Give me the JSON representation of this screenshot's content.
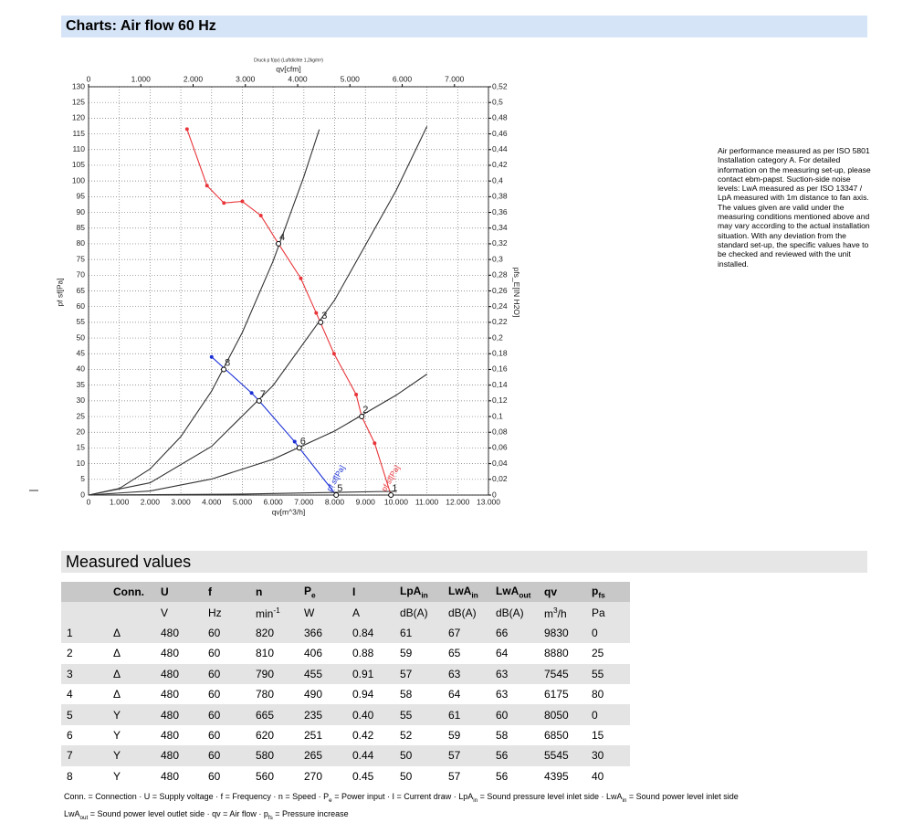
{
  "header": {
    "title": "Charts: Air flow 60 Hz"
  },
  "chart_data": {
    "type": "line",
    "title": "Druck p f(qv) (Luftdichte 1,2kg/m³)",
    "x_label": "qv[m^3/h]",
    "x2_label": "qv[cfm]",
    "y_label": "pf sf[Pa]",
    "y2_label": "pfs_E[IN H2O]",
    "xlim": [
      0,
      13000
    ],
    "xticks": [
      0,
      {
        "value": 1000,
        "label": "1.000"
      },
      {
        "value": 2000,
        "label": "2.000"
      },
      {
        "value": 3000,
        "label": "3.000"
      },
      {
        "value": 4000,
        "label": "4.000"
      },
      {
        "value": 5000,
        "label": "5.000"
      },
      {
        "value": 6000,
        "label": "6.000"
      },
      {
        "value": 7000,
        "label": "7.000"
      },
      {
        "value": 8000,
        "label": "8.000"
      },
      {
        "value": 9000,
        "label": "9.000"
      },
      {
        "value": 10000,
        "label": "10.000"
      },
      {
        "value": 11000,
        "label": "11.000"
      },
      {
        "value": 12000,
        "label": "12.000"
      },
      {
        "value": 13000,
        "label": "13.000"
      }
    ],
    "x2lim": [
      0,
      7650
    ],
    "x2ticks": [
      0,
      {
        "value": 1000,
        "label": "1.000"
      },
      {
        "value": 2000,
        "label": "2.000"
      },
      {
        "value": 3000,
        "label": "3.000"
      },
      {
        "value": 4000,
        "label": "4.000"
      },
      {
        "value": 5000,
        "label": "5.000"
      },
      {
        "value": 6000,
        "label": "6.000"
      },
      {
        "value": 7000,
        "label": "7.000"
      }
    ],
    "ylim": [
      0,
      130
    ],
    "yticks": [
      0,
      5,
      10,
      15,
      20,
      25,
      30,
      35,
      40,
      45,
      50,
      55,
      60,
      65,
      70,
      75,
      80,
      85,
      90,
      95,
      100,
      105,
      110,
      115,
      120,
      125,
      130
    ],
    "y2lim": [
      0,
      0.52
    ],
    "y2ticks": [
      0,
      {
        "value": 0.02,
        "label": "0,02"
      },
      {
        "value": 0.04,
        "label": "0,04"
      },
      {
        "value": 0.06,
        "label": "0,06"
      },
      {
        "value": 0.08,
        "label": "0,08"
      },
      {
        "value": 0.1,
        "label": "0,1"
      },
      {
        "value": 0.12,
        "label": "0,12"
      },
      {
        "value": 0.14,
        "label": "0,14"
      },
      {
        "value": 0.16,
        "label": "0,16"
      },
      {
        "value": 0.18,
        "label": "0,18"
      },
      {
        "value": 0.2,
        "label": "0,2"
      },
      {
        "value": 0.22,
        "label": "0,22"
      },
      {
        "value": 0.24,
        "label": "0,24"
      },
      {
        "value": 0.26,
        "label": "0,26"
      },
      {
        "value": 0.28,
        "label": "0,28"
      },
      {
        "value": 0.3,
        "label": "0,3"
      },
      {
        "value": 0.32,
        "label": "0,32"
      },
      {
        "value": 0.34,
        "label": "0,34"
      },
      {
        "value": 0.36,
        "label": "0,36"
      },
      {
        "value": 0.38,
        "label": "0,38"
      },
      {
        "value": 0.4,
        "label": "0,4"
      },
      {
        "value": 0.42,
        "label": "0,42"
      },
      {
        "value": 0.44,
        "label": "0,44"
      },
      {
        "value": 0.46,
        "label": "0,46"
      },
      {
        "value": 0.48,
        "label": "0,48"
      },
      {
        "value": 0.5,
        "label": "0,5"
      },
      {
        "value": 0.52,
        "label": "0,52"
      }
    ],
    "grid": true,
    "series": [
      {
        "name": "pf sf[Pa]",
        "color": "#e8353a",
        "x": [
          3200,
          3850,
          4400,
          5000,
          5600,
          6175,
          6900,
          7400,
          7980,
          8700,
          8880,
          9300,
          9830
        ],
        "values": [
          116.5,
          98.5,
          93,
          93.5,
          89,
          80,
          69,
          58,
          45,
          32,
          25,
          16.5,
          0
        ]
      },
      {
        "name": "pf sf[Pa]",
        "color": "#1a2fd6",
        "x": [
          4000,
          5300,
          5545,
          6700,
          6850,
          8050
        ],
        "values": [
          44,
          32.5,
          30,
          17,
          15,
          0
        ]
      },
      {
        "color": "#333333",
        "x": [
          0,
          1000,
          2000,
          3000,
          4000,
          5000,
          6000,
          7000,
          7500
        ],
        "values": [
          0,
          2.1,
          8.3,
          18.6,
          33.1,
          51.8,
          74.5,
          101.4,
          116.4
        ]
      },
      {
        "color": "#333333",
        "x": [
          0,
          2000,
          4000,
          6000,
          8000,
          10000,
          11000
        ],
        "values": [
          0,
          3.9,
          15.5,
          34.9,
          62.1,
          97,
          117.4
        ]
      },
      {
        "color": "#333333",
        "x": [
          0,
          2000,
          4000,
          6000,
          8000,
          10000,
          11000
        ],
        "values": [
          0,
          1.3,
          5.1,
          11.4,
          20.4,
          31.8,
          38.5
        ]
      },
      {
        "color": "#333333",
        "x": [
          0,
          5000,
          10000
        ],
        "values": [
          0,
          0.3,
          1.2
        ]
      }
    ],
    "points": {
      "labels": [
        "1",
        "2",
        "3",
        "4",
        "5",
        "6",
        "7",
        "8"
      ],
      "x": [
        9830,
        8880,
        7545,
        6175,
        8050,
        6850,
        5545,
        4395
      ],
      "values": [
        0,
        25,
        55,
        80,
        0,
        15,
        30,
        40
      ]
    }
  },
  "notes": [
    "Air performance measured as per ISO 5801",
    "Installation category A. For detailed",
    "information on the measuring set-up, please",
    "contact ebm-papst. Suction-side noise",
    "levels: LwA measured as per ISO 13347 /",
    "LpA measured with 1m distance to fan axis.",
    "The values given are valid under the",
    "measuring conditions mentioned above and",
    "may vary according to the actual installation",
    "situation. With any deviation from the",
    "standard set-up, the specific values have to",
    "be checked and reviewed with the unit",
    "installed."
  ],
  "section": {
    "title": "Measured values"
  },
  "table": {
    "header": [
      [],
      [
        {
          "text": "Conn."
        }
      ],
      [
        {
          "text": "U"
        }
      ],
      [
        {
          "text": "f"
        }
      ],
      [
        {
          "text": "n"
        }
      ],
      [
        {
          "text": "P"
        },
        {
          "text": "e",
          "pos": "sub"
        }
      ],
      [
        {
          "text": "I"
        }
      ],
      [
        {
          "text": "LpA"
        },
        {
          "text": "in",
          "pos": "sub"
        }
      ],
      [
        {
          "text": "LwA"
        },
        {
          "text": "in",
          "pos": "sub"
        }
      ],
      [
        {
          "text": "LwA"
        },
        {
          "text": "out",
          "pos": "sub"
        }
      ],
      [
        {
          "text": "qv"
        }
      ],
      [
        {
          "text": "p"
        },
        {
          "text": "fs",
          "pos": "sub"
        }
      ]
    ],
    "units": [
      [],
      [],
      [
        {
          "text": "V"
        }
      ],
      [
        {
          "text": "Hz"
        }
      ],
      [
        {
          "text": "min"
        },
        {
          "text": "-1",
          "pos": "sup"
        }
      ],
      [
        {
          "text": "W"
        }
      ],
      [
        {
          "text": "A"
        }
      ],
      [
        {
          "text": "dB(A)"
        }
      ],
      [
        {
          "text": "dB(A)"
        }
      ],
      [
        {
          "text": "dB(A)"
        }
      ],
      [
        {
          "text": "m"
        },
        {
          "text": "3",
          "pos": "sup"
        },
        {
          "text": "/h"
        }
      ],
      [
        {
          "text": "Pa"
        }
      ]
    ],
    "rows": [
      [
        "1",
        "Δ",
        "480",
        "60",
        "820",
        "366",
        "0.84",
        "61",
        "67",
        "66",
        "9830",
        "0"
      ],
      [
        "2",
        "Δ",
        "480",
        "60",
        "810",
        "406",
        "0.88",
        "59",
        "65",
        "64",
        "8880",
        "25"
      ],
      [
        "3",
        "Δ",
        "480",
        "60",
        "790",
        "455",
        "0.91",
        "57",
        "63",
        "63",
        "7545",
        "55"
      ],
      [
        "4",
        "Δ",
        "480",
        "60",
        "780",
        "490",
        "0.94",
        "58",
        "64",
        "63",
        "6175",
        "80"
      ],
      [
        "5",
        "Y",
        "480",
        "60",
        "665",
        "235",
        "0.40",
        "55",
        "61",
        "60",
        "8050",
        "0"
      ],
      [
        "6",
        "Y",
        "480",
        "60",
        "620",
        "251",
        "0.42",
        "52",
        "59",
        "58",
        "6850",
        "15"
      ],
      [
        "7",
        "Y",
        "480",
        "60",
        "580",
        "265",
        "0.44",
        "50",
        "57",
        "56",
        "5545",
        "30"
      ],
      [
        "8",
        "Y",
        "480",
        "60",
        "560",
        "270",
        "0.45",
        "50",
        "57",
        "56",
        "4395",
        "40"
      ]
    ]
  },
  "legend": [
    [
      {
        "text": "Conn. = Connection · U = Supply voltage · f = Frequency · n = Speed · P"
      },
      {
        "text": "e",
        "pos": "sub"
      },
      {
        "text": " = Power input · I = Current draw · LpA"
      },
      {
        "text": "in",
        "pos": "sub"
      },
      {
        "text": " = Sound pressure level inlet side · LwA"
      },
      {
        "text": "in",
        "pos": "sub"
      },
      {
        "text": " = Sound power level inlet side"
      }
    ],
    [
      {
        "text": "LwA"
      },
      {
        "text": "out",
        "pos": "sub"
      },
      {
        "text": " = Sound power level outlet side · qv = Air flow · p"
      },
      {
        "text": "fs",
        "pos": "sub"
      },
      {
        "text": " = Pressure increase"
      }
    ]
  ]
}
